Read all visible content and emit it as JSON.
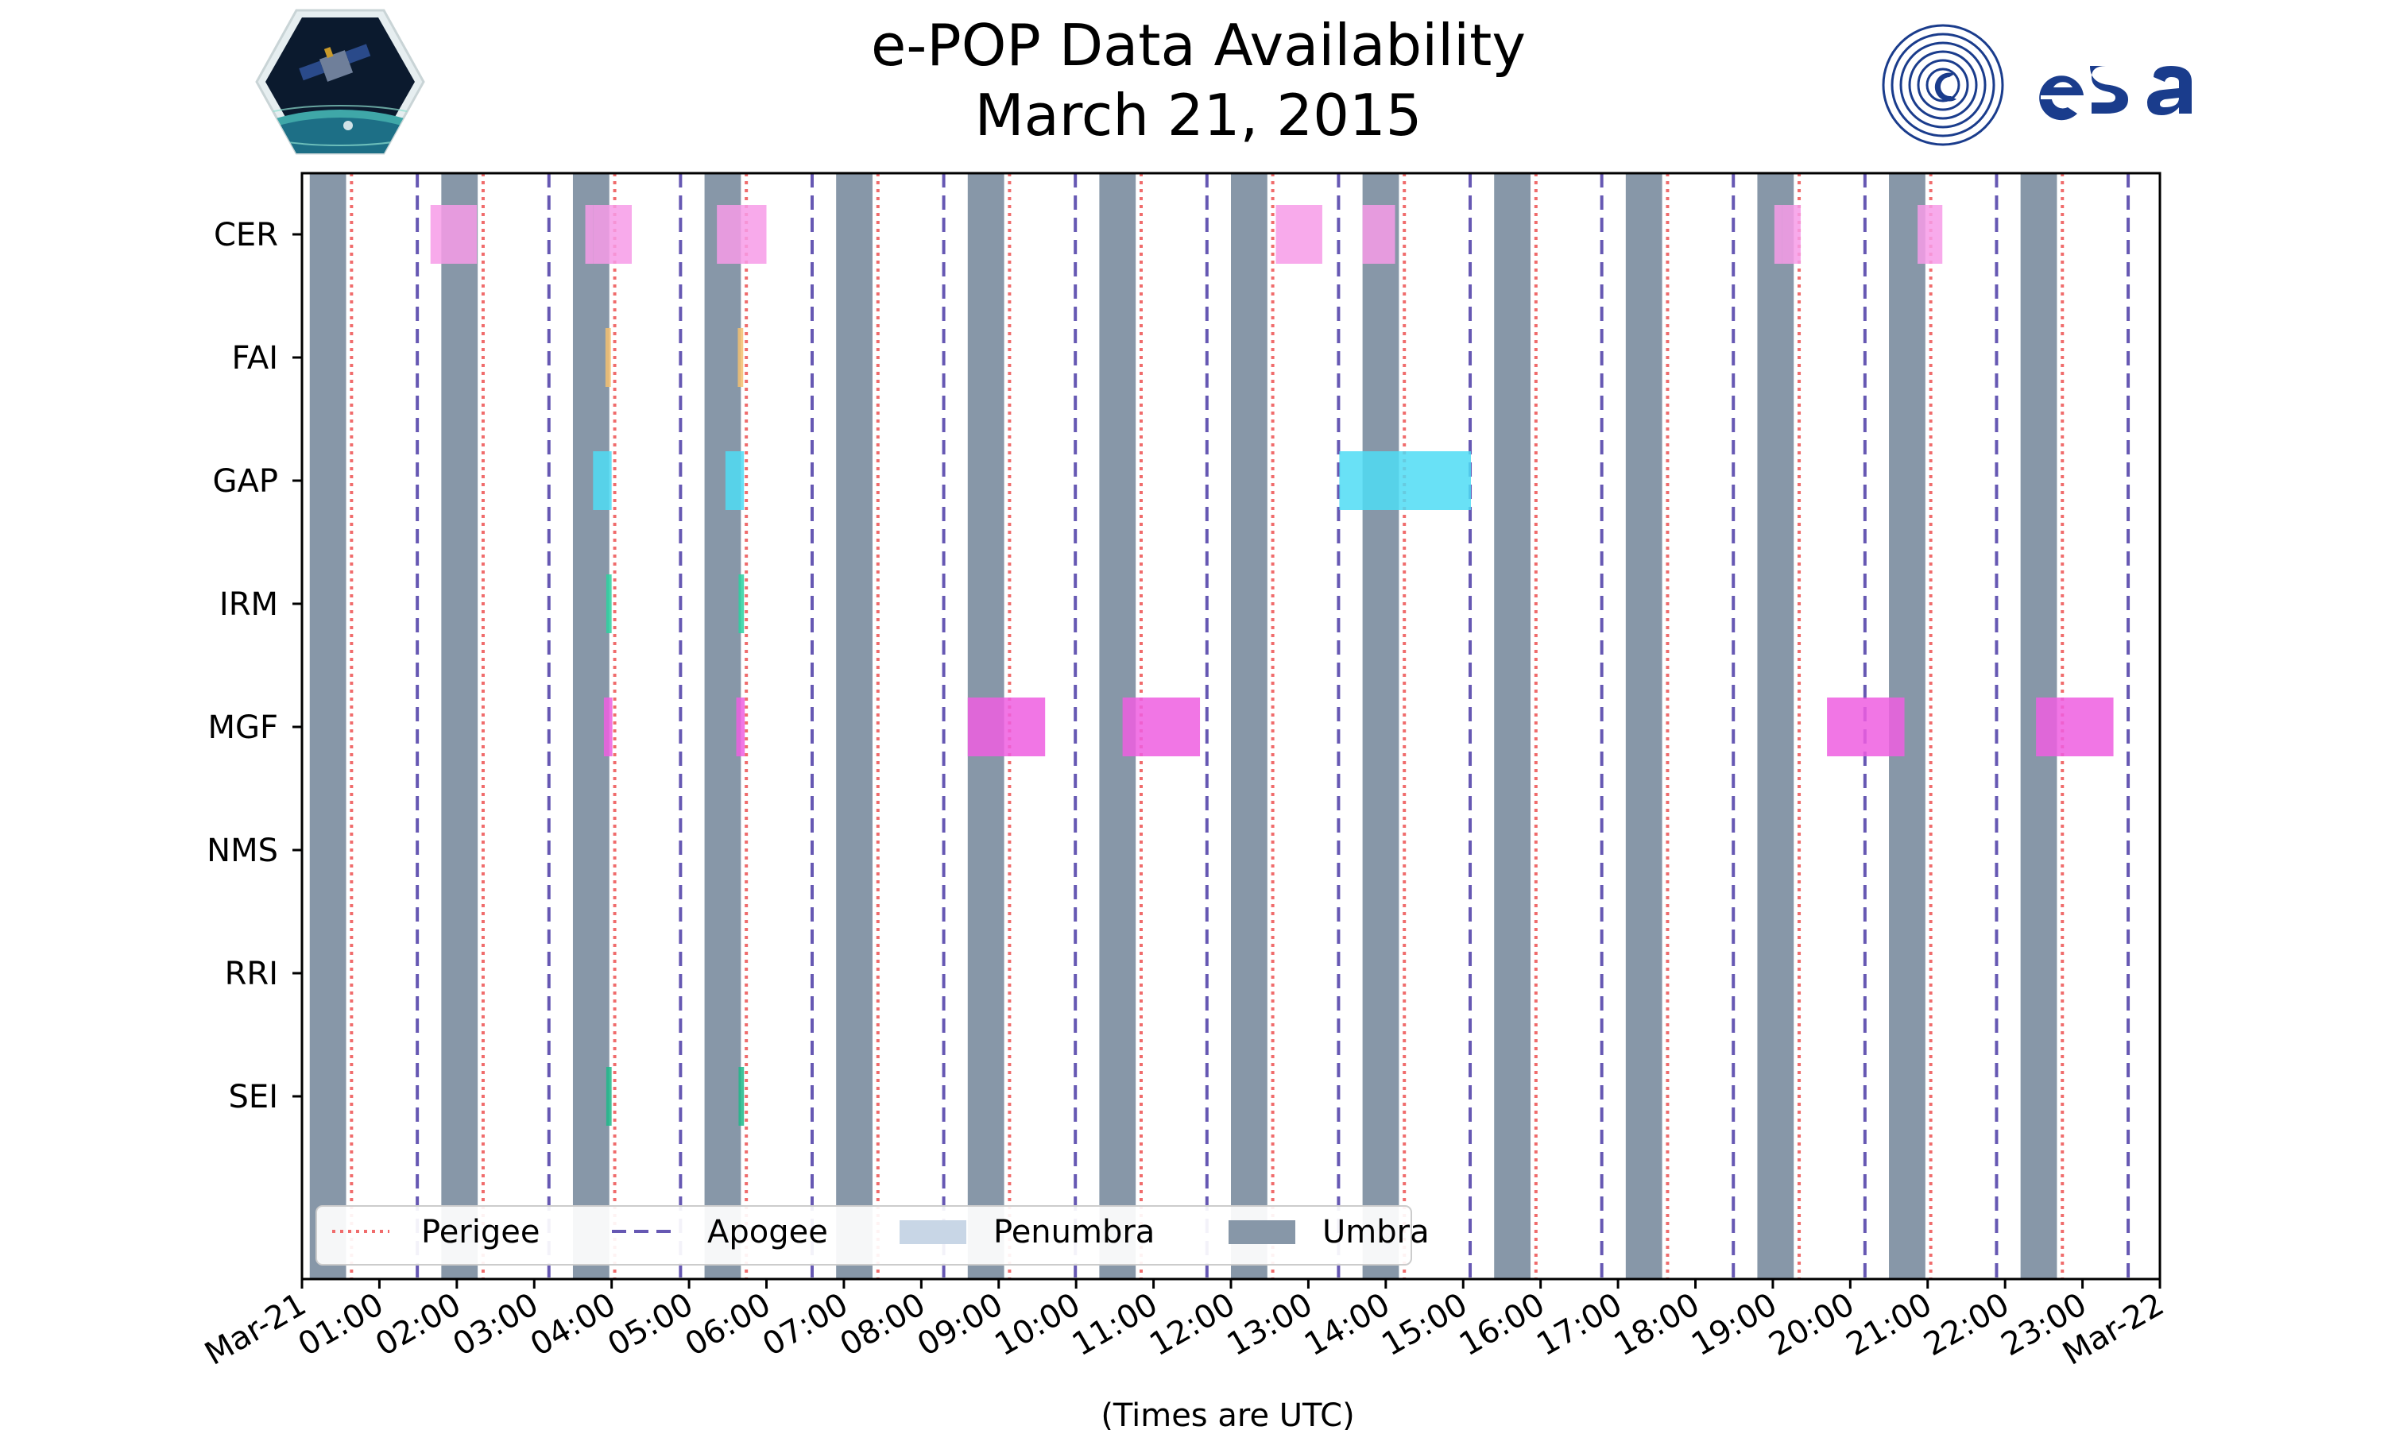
{
  "chart_data": {
    "type": "timeline",
    "title": "e-POP Data Availability",
    "subtitle": "March 21, 2015",
    "xlabel": "(Times are UTC)",
    "xlim_hours": [
      0,
      24
    ],
    "x_tick_labels": [
      "Mar-21",
      "01:00",
      "02:00",
      "03:00",
      "04:00",
      "05:00",
      "06:00",
      "07:00",
      "08:00",
      "09:00",
      "10:00",
      "11:00",
      "12:00",
      "13:00",
      "14:00",
      "15:00",
      "16:00",
      "17:00",
      "18:00",
      "19:00",
      "20:00",
      "21:00",
      "22:00",
      "23:00",
      "Mar-22"
    ],
    "instruments": [
      "CER",
      "FAI",
      "GAP",
      "IRM",
      "MGF",
      "NMS",
      "RRI",
      "SEI"
    ],
    "colors": {
      "CER": "#f79be8",
      "FAI": "#f5c070",
      "GAP": "#4fdcf5",
      "IRM": "#2bd1a0",
      "MGF": "#ee5ee0",
      "SEI": "#1fb88a",
      "umbra": "#8797a8",
      "penumbra": "#c8d6e6",
      "perigee": "#f06c6c",
      "apogee": "#6658b3"
    },
    "legend": [
      "Perigee",
      "Apogee",
      "Penumbra",
      "Umbra"
    ],
    "legend_location": "lower-left",
    "umbra_intervals_hours": [
      [
        0.1,
        0.57
      ],
      [
        1.8,
        2.27
      ],
      [
        3.5,
        3.97
      ],
      [
        5.2,
        5.67
      ],
      [
        6.9,
        7.37
      ],
      [
        8.6,
        9.07
      ],
      [
        10.3,
        10.77
      ],
      [
        12.0,
        12.47
      ],
      [
        13.7,
        14.17
      ],
      [
        15.4,
        15.87
      ],
      [
        17.1,
        17.57
      ],
      [
        18.8,
        19.27
      ],
      [
        20.5,
        20.97
      ],
      [
        22.2,
        22.67
      ]
    ],
    "perigee_hours": [
      0.64,
      2.34,
      4.04,
      5.74,
      7.44,
      9.14,
      10.84,
      12.54,
      14.24,
      15.94,
      17.64,
      19.34,
      21.04,
      22.74
    ],
    "apogee_hours": [
      1.49,
      3.19,
      4.89,
      6.59,
      8.29,
      9.99,
      11.69,
      13.39,
      15.09,
      16.79,
      18.49,
      20.19,
      21.89,
      23.59
    ],
    "availability_intervals_hours": {
      "CER": [
        [
          1.66,
          2.26
        ],
        [
          3.66,
          3.76
        ],
        [
          3.76,
          4.26
        ],
        [
          5.36,
          6.0
        ],
        [
          12.58,
          13.18
        ],
        [
          13.7,
          14.12
        ],
        [
          19.02,
          19.12
        ],
        [
          19.12,
          19.36
        ],
        [
          20.87,
          21.19
        ]
      ],
      "FAI": [
        [
          3.92,
          3.99
        ],
        [
          5.63,
          5.7
        ]
      ],
      "GAP": [
        [
          3.76,
          4.0
        ],
        [
          5.47,
          5.71
        ],
        [
          13.4,
          15.1
        ]
      ],
      "IRM": [
        [
          3.93,
          4.0
        ],
        [
          5.64,
          5.71
        ]
      ],
      "MGF": [
        [
          3.9,
          4.01
        ],
        [
          5.61,
          5.72
        ],
        [
          8.6,
          9.6
        ],
        [
          10.6,
          11.6
        ],
        [
          19.7,
          20.7
        ],
        [
          22.4,
          23.4
        ]
      ],
      "NMS": [],
      "RRI": [],
      "SEI": [
        [
          3.93,
          4.0
        ],
        [
          5.64,
          5.71
        ]
      ]
    }
  }
}
